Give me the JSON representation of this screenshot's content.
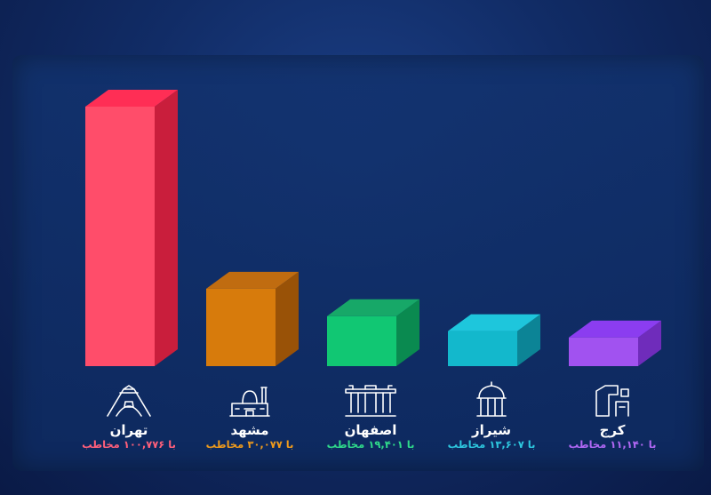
{
  "chart_data": {
    "type": "bar",
    "categories": [
      "تهران",
      "مشهد",
      "اصفهان",
      "شیراز",
      "کرج"
    ],
    "values": [
      100776,
      30077,
      19401,
      13607,
      11140
    ],
    "value_labels": [
      "با ۱۰۰,۷۷۶ مخاطب",
      "با ۳۰,۰۷۷ مخاطب",
      "با ۱۹,۴۰۱ مخاطب",
      "با ۱۳,۶۰۷ مخاطب",
      "با ۱۱,۱۴۰ مخاطب"
    ],
    "icons": [
      "azadi-tower-icon",
      "imam-reza-shrine-icon",
      "chehel-sotoun-icon",
      "hafez-tomb-icon",
      "karaj-monument-icon"
    ],
    "colors": {
      "front": [
        "#ff4d6a",
        "#d77b0c",
        "#11c773",
        "#13b8cc",
        "#a152f0"
      ],
      "side": [
        "#c91e3c",
        "#995207",
        "#0a8a50",
        "#0c8496",
        "#6f2cbb"
      ],
      "top": [
        "#ff2e55",
        "#c06c10",
        "#17a868",
        "#1ec6dc",
        "#8b3df0"
      ],
      "label": [
        "#ff5f7a",
        "#ee9a1c",
        "#2fd98a",
        "#2dc7de",
        "#b168f5"
      ]
    },
    "ylim": [
      0,
      100776
    ],
    "grid": false
  }
}
